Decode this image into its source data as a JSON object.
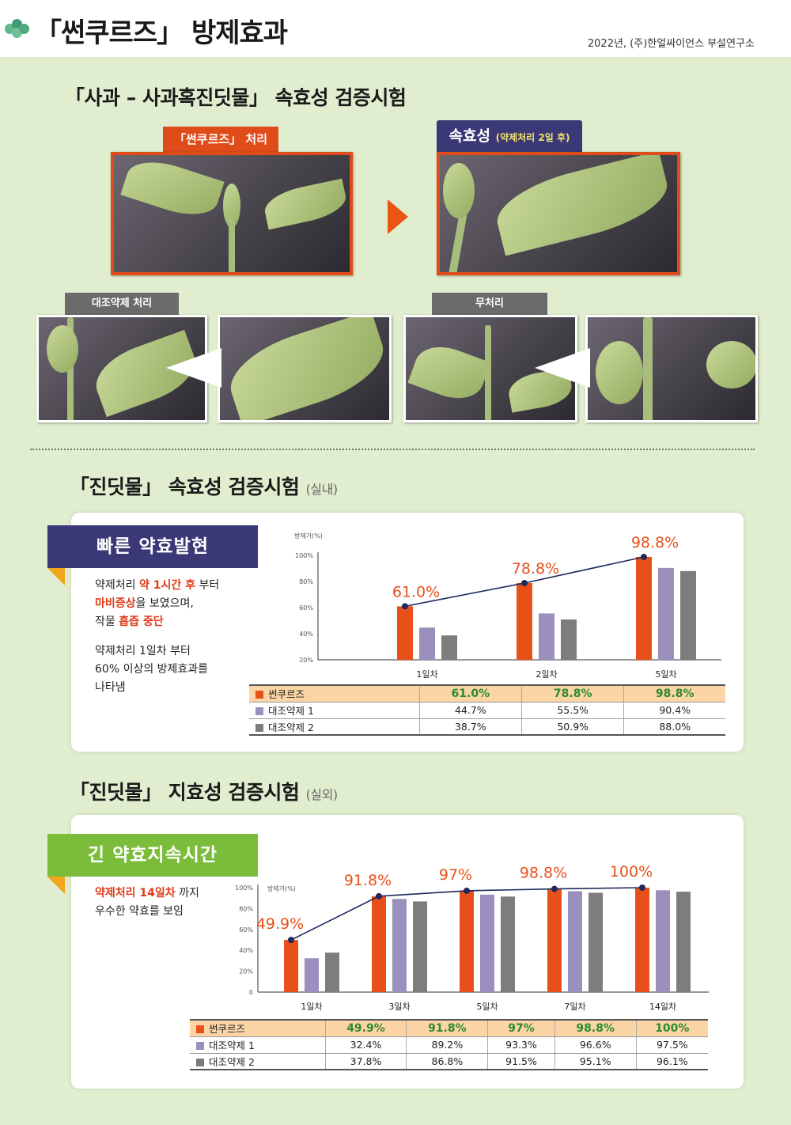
{
  "header": {
    "title": "「썬쿠르즈」 방제효과",
    "source": "2022년, (주)한얼싸이언스 부설연구소"
  },
  "section1": {
    "title": "「사과 – 사과혹진딧물」 속효성 검증시험",
    "treated_label": "「썬쿠르즈」 처리",
    "after_label": "속효성",
    "after_note": "(약제처리 2일 후)",
    "control_label": "대조약제 처리",
    "untreated_label": "무처리"
  },
  "section2": {
    "title": "「진딧물」 속효성 검증시험",
    "note": "(실내)",
    "banner": "빠른 약효발현",
    "desc": {
      "p1_a": "약제처리 ",
      "p1_hl1": "약 1시간 후",
      "p1_b": " 부터",
      "p1_hl2": "마비증상",
      "p1_c": "을 보였으며,",
      "p1_d": "작물 ",
      "p1_hl3": "흡즙 중단",
      "p2_a": "약제처리 1일차 부터",
      "p2_b": "60% 이상의 방제효과를",
      "p2_c": "나타냄"
    }
  },
  "section3": {
    "title": "「진딧물」 지효성 검증시험",
    "note": "(실외)",
    "banner": "긴 약효지속시간",
    "desc": {
      "p1_hl": "약제처리 14일차",
      "p1_a": " 까지",
      "p1_b": "우수한 약효를 보임"
    }
  },
  "colors": {
    "orange": "#e8501a",
    "purple": "#9b8fbd",
    "gray": "#7d7d7d",
    "navy": "#3b3877",
    "green": "#7bbd3a",
    "line": "#1f2a5a"
  },
  "chart_data": [
    {
      "type": "bar",
      "ylabel": "방제가(%)",
      "yticks": [
        "20%",
        "40%",
        "60%",
        "80%",
        "100%"
      ],
      "ylim": [
        20,
        100
      ],
      "categories": [
        "1일차",
        "2일차",
        "5일차"
      ],
      "series": [
        {
          "name": "썬쿠르즈",
          "values": [
            61.0,
            78.8,
            98.8
          ],
          "labels": [
            "61.0%",
            "78.8%",
            "98.8%"
          ]
        },
        {
          "name": "대조약제 1",
          "values": [
            44.7,
            55.5,
            90.4
          ],
          "labels": [
            "44.7%",
            "55.5%",
            "90.4%"
          ]
        },
        {
          "name": "대조약제 2",
          "values": [
            38.7,
            50.9,
            88.0
          ],
          "labels": [
            "38.7%",
            "50.9%",
            "88.0%"
          ]
        }
      ],
      "line_series": "썬쿠르즈"
    },
    {
      "type": "bar",
      "ylabel": "방제가(%)",
      "yticks": [
        "0",
        "20%",
        "40%",
        "60%",
        "80%",
        "100%"
      ],
      "ylim": [
        0,
        100
      ],
      "categories": [
        "1일차",
        "3일차",
        "5일차",
        "7일차",
        "14일차"
      ],
      "series": [
        {
          "name": "썬쿠르즈",
          "values": [
            49.9,
            91.8,
            97,
            98.8,
            100
          ],
          "labels": [
            "49.9%",
            "91.8%",
            "97%",
            "98.8%",
            "100%"
          ]
        },
        {
          "name": "대조약제 1",
          "values": [
            32.4,
            89.2,
            93.3,
            96.6,
            97.5
          ],
          "labels": [
            "32.4%",
            "89.2%",
            "93.3%",
            "96.6%",
            "97.5%"
          ]
        },
        {
          "name": "대조약제 2",
          "values": [
            37.8,
            86.8,
            91.5,
            95.1,
            96.1
          ],
          "labels": [
            "37.8%",
            "86.8%",
            "91.5%",
            "95.1%",
            "96.1%"
          ]
        }
      ],
      "line_series": "썬쿠르즈"
    }
  ]
}
